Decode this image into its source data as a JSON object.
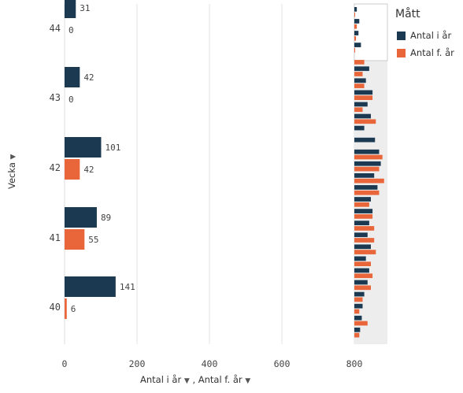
{
  "chart_data": {
    "type": "bar",
    "orientation": "horizontal",
    "categories": [
      "44",
      "43",
      "42",
      "41",
      "40"
    ],
    "series": [
      {
        "name": "Antal i år",
        "color": "#1b3a52",
        "values": [
          31,
          42,
          101,
          89,
          141
        ]
      },
      {
        "name": "Antal f. år",
        "color": "#e8663a",
        "values": [
          0,
          0,
          42,
          55,
          6
        ]
      }
    ],
    "xlim": [
      0,
      800
    ],
    "xticks": [
      "0",
      "200",
      "400",
      "600",
      "800"
    ],
    "xlabel_parts": [
      "Antal i år",
      ", Antal f. år"
    ],
    "ylabel": "Vecka",
    "legend_title": "Mått",
    "legend_position": "top-right",
    "grid": true,
    "minimap": {
      "present": true,
      "note_values": "overview scroll strip showing many more weeks",
      "dark": [
        3,
        6,
        5,
        8,
        0,
        18,
        14,
        22,
        16,
        20,
        12,
        25,
        30,
        32,
        24,
        28,
        20,
        22,
        18,
        16,
        20,
        14,
        18,
        16,
        12,
        10,
        9,
        7
      ],
      "orange": [
        1,
        3,
        2,
        1,
        12,
        10,
        12,
        22,
        10,
        26,
        0,
        0,
        34,
        30,
        36,
        30,
        18,
        22,
        24,
        24,
        26,
        20,
        22,
        20,
        10,
        6,
        16,
        6
      ]
    }
  }
}
